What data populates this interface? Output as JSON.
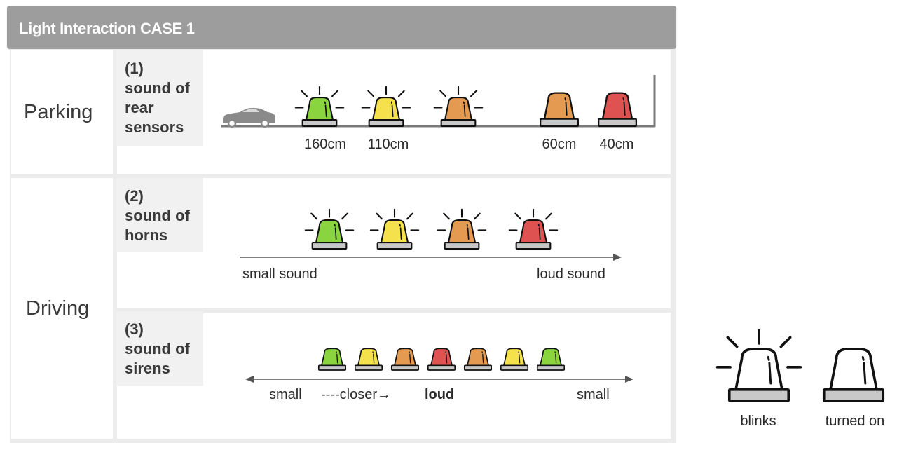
{
  "header": {
    "title": "Light Interaction CASE 1"
  },
  "colors": {
    "green": "#8ad43f",
    "yellow": "#f4e14b",
    "orange": "#e49a50",
    "red": "#df5252",
    "base": "#c8c8c8",
    "outline": "#111111",
    "header_bg": "#9d9d9d"
  },
  "sections": {
    "parking": "Parking",
    "driving": "Driving"
  },
  "cases": {
    "rear_sensors": {
      "lines": [
        "(1)",
        "sound of",
        "rear",
        "sensors"
      ],
      "distances": [
        "160cm",
        "110cm",
        "60cm",
        "40cm"
      ]
    },
    "horns": {
      "lines": [
        "(2)",
        "sound of",
        "horns"
      ],
      "start": "small sound",
      "end": "loud sound"
    },
    "sirens": {
      "lines": [
        "(3)",
        "sound of",
        "sirens"
      ],
      "left": "small",
      "middle": "----closer→",
      "peak": "loud",
      "right": "small"
    }
  },
  "legend": {
    "blinks": "blinks",
    "turned_on": "turned on"
  },
  "icons": {
    "car": "car-icon",
    "blinking_light": "blinking-siren-icon",
    "steady_light": "steady-siren-icon"
  }
}
